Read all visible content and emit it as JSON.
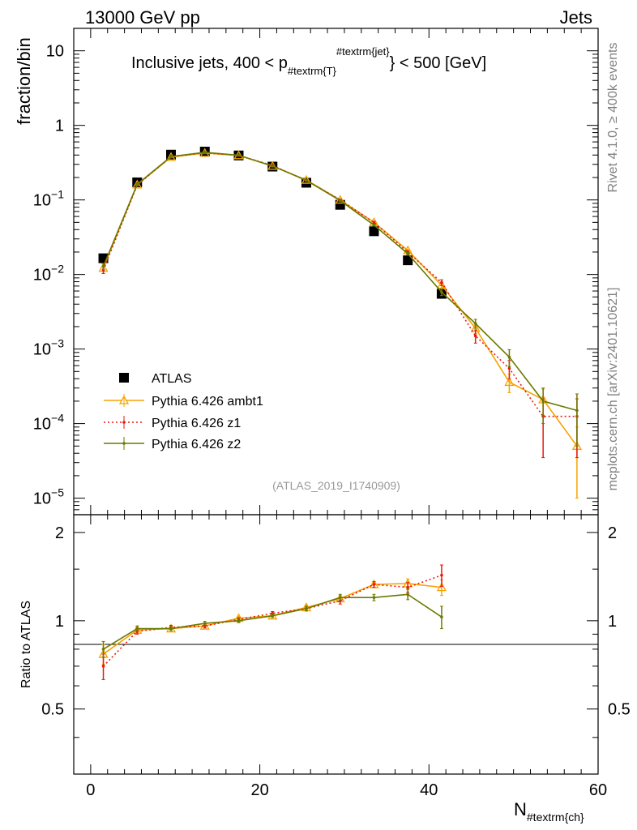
{
  "header": {
    "left": "13000 GeV pp",
    "right": "Jets"
  },
  "side_text": {
    "rivet": "Rivet 4.1.0, ≥ 400k events",
    "mcplots": "mcplots.cern.ch [arXiv:2401.10621]"
  },
  "chart_data": {
    "type": "line",
    "title": {
      "prefix": "Inclusive jets, 400 < p",
      "sub": "#textrm{T}",
      "sup": "#textrm{jet}",
      "suffix": "} < 500 [GeV]"
    },
    "reference": "(ATLAS_2019_I1740909)",
    "xlabel": {
      "main": "N",
      "sub": "#textrm{ch}"
    },
    "ylabel": "fraction/bin",
    "ratio_ylabel": "Ratio to ATLAS",
    "xlim": [
      -2,
      60
    ],
    "ylim": [
      6e-06,
      20
    ],
    "ratio_ylim": [
      0.3,
      2.3
    ],
    "x_ticks": [
      0,
      20,
      40,
      60
    ],
    "x_tick_labels": [
      "0",
      "20",
      "40",
      "60"
    ],
    "y_ticks": [
      10,
      1,
      0.1,
      0.01,
      0.001,
      0.0001,
      1e-05
    ],
    "y_tick_labels": [
      {
        "base": "10",
        "exp": ""
      },
      {
        "base": "1",
        "exp": ""
      },
      {
        "base": "10",
        "exp": "−1"
      },
      {
        "base": "10",
        "exp": "−2"
      },
      {
        "base": "10",
        "exp": "−3"
      },
      {
        "base": "10",
        "exp": "−4"
      },
      {
        "base": "10",
        "exp": "−5"
      }
    ],
    "ratio_ticks": [
      0.5,
      1,
      2
    ],
    "ratio_tick_labels": [
      "0.5",
      "1",
      "2"
    ],
    "legend_position": "middle-left",
    "series": [
      {
        "name": "ATLAS",
        "color": "#000000",
        "style": "data",
        "x": [
          1.5,
          5.5,
          9.5,
          13.5,
          17.5,
          21.5,
          25.5,
          29.5,
          33.5,
          37.5,
          41.5
        ],
        "y": [
          0.0165,
          0.172,
          0.405,
          0.445,
          0.395,
          0.28,
          0.17,
          0.086,
          0.038,
          0.0155,
          0.0055
        ]
      },
      {
        "name": "Pythia 6.426 ambt1",
        "color": "#f5a300",
        "style": "solid-triangle",
        "x": [
          1.5,
          5.5,
          9.5,
          13.5,
          17.5,
          21.5,
          25.5,
          29.5,
          33.5,
          37.5,
          41.5,
          45.5,
          49.5,
          53.5,
          57.5
        ],
        "y": [
          0.0122,
          0.16,
          0.375,
          0.425,
          0.395,
          0.285,
          0.185,
          0.1,
          0.05,
          0.021,
          0.0072,
          0.0019,
          0.00036,
          0.00021,
          5e-05
        ],
        "err": [
          0.0012,
          0.005,
          0.008,
          0.008,
          0.008,
          0.006,
          0.004,
          0.003,
          0.0015,
          0.0008,
          0.0006,
          0.0003,
          0.0001,
          8e-05,
          4e-05
        ],
        "ratio": [
          0.77,
          0.93,
          0.94,
          0.96,
          1.02,
          1.04,
          1.11,
          1.19,
          1.33,
          1.34,
          1.3
        ],
        "ratio_err": [
          0.06,
          0.02,
          0.015,
          0.015,
          0.015,
          0.015,
          0.02,
          0.03,
          0.03,
          0.05,
          0.08
        ]
      },
      {
        "name": "Pythia 6.426 z1",
        "color": "#e8190f",
        "style": "dotted",
        "x": [
          1.5,
          5.5,
          9.5,
          13.5,
          17.5,
          21.5,
          25.5,
          29.5,
          33.5,
          37.5,
          41.5,
          45.5,
          49.5,
          53.5,
          57.5
        ],
        "y": [
          0.0115,
          0.158,
          0.38,
          0.428,
          0.396,
          0.29,
          0.182,
          0.1,
          0.05,
          0.02,
          0.0078,
          0.0015,
          0.00055,
          0.000125,
          0.000125
        ],
        "err": [
          0.0012,
          0.005,
          0.008,
          0.008,
          0.008,
          0.006,
          0.004,
          0.003,
          0.0015,
          0.0008,
          0.0007,
          0.0003,
          0.00015,
          9e-05,
          9e-05
        ],
        "ratio": [
          0.7,
          0.92,
          0.95,
          0.96,
          1.01,
          1.06,
          1.1,
          1.17,
          1.33,
          1.3,
          1.43
        ],
        "ratio_err": [
          0.07,
          0.02,
          0.015,
          0.015,
          0.015,
          0.015,
          0.02,
          0.03,
          0.03,
          0.05,
          0.12
        ]
      },
      {
        "name": "Pythia 6.426 z2",
        "color": "#6b7a00",
        "style": "solid-dot",
        "x": [
          1.5,
          5.5,
          9.5,
          13.5,
          17.5,
          21.5,
          25.5,
          29.5,
          33.5,
          37.5,
          41.5,
          45.5,
          49.5,
          53.5,
          57.5
        ],
        "y": [
          0.0128,
          0.162,
          0.382,
          0.435,
          0.398,
          0.285,
          0.183,
          0.098,
          0.046,
          0.019,
          0.0058,
          0.0022,
          0.00078,
          0.0002,
          0.00015
        ],
        "err": [
          0.0012,
          0.005,
          0.008,
          0.008,
          0.008,
          0.006,
          0.004,
          0.003,
          0.0015,
          0.0008,
          0.0006,
          0.0003,
          0.0002,
          0.0001,
          0.0001
        ],
        "ratio": [
          0.8,
          0.94,
          0.94,
          0.98,
          1.0,
          1.04,
          1.1,
          1.2,
          1.2,
          1.23,
          1.03
        ],
        "ratio_err": [
          0.05,
          0.02,
          0.015,
          0.015,
          0.015,
          0.015,
          0.02,
          0.03,
          0.03,
          0.05,
          0.09
        ]
      }
    ]
  }
}
